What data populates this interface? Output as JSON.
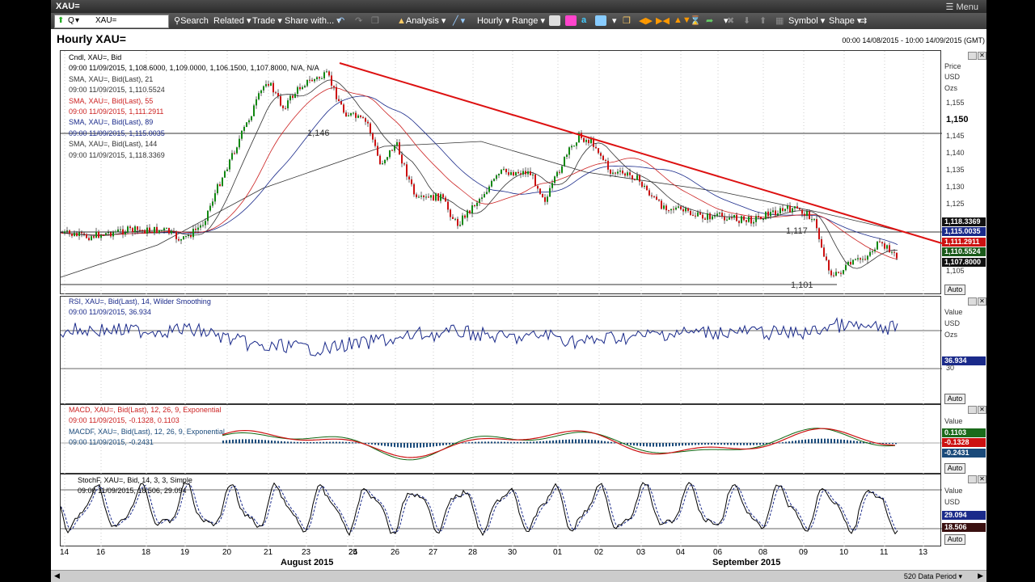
{
  "window": {
    "title": "XAU=",
    "menu_label": "Menu"
  },
  "toolbar": {
    "symbol_value": "XAU=",
    "symbol_prefix": "Q",
    "search_label": "Search",
    "related_label": "Related",
    "trade_label": "Trade",
    "share_label": "Share with...",
    "analysis_label": "Analysis",
    "interval_label": "Hourly",
    "range_label": "Range",
    "symbol_menu_label": "Symbol",
    "shape_menu_label": "Shape"
  },
  "chart": {
    "title": "Hourly XAU=",
    "date_range": "00:00 14/08/2015 - 10:00 14/09/2015 (GMT)",
    "status_period": "520 Data Period"
  },
  "price_pane": {
    "legend": [
      {
        "text": "Cndl, XAU=, Bid",
        "color": "#000000"
      },
      {
        "text": "09:00 11/09/2015, 1,108.6000, 1,109.0000, 1,106.1500, 1,107.8000, N/A, N/A",
        "color": "#000000"
      },
      {
        "text": "SMA, XAU=, Bid(Last), 21",
        "color": "#333333"
      },
      {
        "text": "09:00 11/09/2015, 1,110.5524",
        "color": "#333333"
      },
      {
        "text": "SMA, XAU=, Bid(Last), 55",
        "color": "#cc2222"
      },
      {
        "text": "09:00 11/09/2015, 1,111.2911",
        "color": "#cc2222"
      },
      {
        "text": "SMA, XAU=, Bid(Last), 89",
        "color": "#1a2a8a"
      },
      {
        "text": "09:00 11/09/2015, 1,115.0035",
        "color": "#1a2a8a"
      },
      {
        "text": "SMA, XAU=, Bid(Last), 144",
        "color": "#333333"
      },
      {
        "text": "09:00 11/09/2015, 1,118.3369",
        "color": "#333333"
      }
    ],
    "axis_labels": [
      "Price",
      "USD",
      "Ozs"
    ],
    "ticks": [
      "1,155",
      "1,150",
      "1,145",
      "1,140",
      "1,135",
      "1,130",
      "1,125",
      "1,105"
    ],
    "tags": [
      {
        "text": "1,118.3369",
        "color": "#111111"
      },
      {
        "text": "1,115.0035",
        "color": "#1a2a8a"
      },
      {
        "text": "1,111.2911",
        "color": "#cc1111"
      },
      {
        "text": "1,110.5524",
        "color": "#1a5a1a"
      },
      {
        "text": "1,107.8000",
        "color": "#111111"
      }
    ],
    "levels": [
      "1,146",
      "1,117",
      "1,101"
    ],
    "auto_label": "Auto"
  },
  "rsi_pane": {
    "legend": [
      {
        "text": "RSI, XAU=, Bid(Last), 14, Wilder Smoothing",
        "color": "#1a2a8a"
      },
      {
        "text": "09:00 11/09/2015, 36.934",
        "color": "#1a2a8a"
      }
    ],
    "axis_labels": [
      "Value",
      "USD",
      "Ozs"
    ],
    "tick": "30",
    "tag": {
      "text": "36.934",
      "color": "#1a2a8a"
    },
    "auto_label": "Auto"
  },
  "macd_pane": {
    "legend": [
      {
        "text": "MACD, XAU=, Bid(Last), 12, 26, 9, Exponential",
        "color": "#cc2222"
      },
      {
        "text": "09:00 11/09/2015, -0.1328, 0.1103",
        "color": "#cc2222"
      },
      {
        "text": "MACDF, XAU=, Bid(Last), 12, 26, 9, Exponential",
        "color": "#1a4a7a"
      },
      {
        "text": "09:00 11/09/2015, -0.2431",
        "color": "#1a4a7a"
      }
    ],
    "axis_labels": [
      "Value"
    ],
    "tags": [
      {
        "text": "0.1103",
        "color": "#1a6a1a"
      },
      {
        "text": "-0.1328",
        "color": "#cc1111"
      },
      {
        "text": "-0.2431",
        "color": "#1a4a7a"
      }
    ],
    "auto_label": "Auto"
  },
  "stoch_pane": {
    "legend": [
      {
        "text": "StochF, XAU=, Bid, 14, 3, 3, Simple",
        "color": "#000000"
      },
      {
        "text": "09:00 11/09/2015, 18.506, 29.094",
        "color": "#000000"
      }
    ],
    "axis_labels": [
      "Value",
      "USD"
    ],
    "tags": [
      {
        "text": "29.094",
        "color": "#1a2a8a"
      },
      {
        "text": "18.506",
        "color": "#3a1010"
      }
    ],
    "auto_label": "Auto"
  },
  "xaxis": {
    "days": [
      "14",
      "16",
      "18",
      "19",
      "20",
      "21",
      "23",
      "24",
      "25",
      "26",
      "27",
      "28",
      "30",
      "01",
      "02",
      "03",
      "04",
      "06",
      "08",
      "09",
      "10",
      "11",
      "13"
    ],
    "months": [
      "August 2015",
      "September 2015"
    ]
  }
}
